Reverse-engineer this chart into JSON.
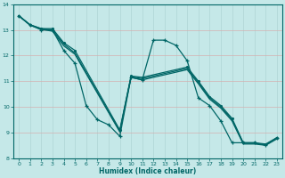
{
  "xlabel": "Humidex (Indice chaleur)",
  "background_color": "#c5e8e8",
  "grid_color": "#afd4d4",
  "line_color": "#006666",
  "xlim": [
    -0.5,
    23.5
  ],
  "ylim": [
    8,
    14
  ],
  "yticks": [
    8,
    9,
    10,
    11,
    12,
    13,
    14
  ],
  "xticks": [
    0,
    1,
    2,
    3,
    4,
    5,
    6,
    7,
    8,
    9,
    10,
    11,
    12,
    13,
    14,
    15,
    16,
    17,
    18,
    19,
    20,
    21,
    22,
    23
  ],
  "line_main_x": [
    0,
    1,
    2,
    3,
    4,
    5,
    6,
    7,
    8,
    9,
    10,
    11,
    12,
    13,
    14,
    15,
    16,
    17,
    18,
    19,
    20,
    21,
    22,
    23
  ],
  "line_main_y": [
    13.55,
    13.2,
    13.0,
    13.0,
    12.2,
    11.7,
    10.05,
    9.5,
    9.3,
    8.85,
    11.15,
    11.05,
    12.6,
    12.6,
    12.4,
    11.8,
    10.35,
    10.05,
    9.45,
    8.6,
    8.6,
    8.6,
    8.5,
    8.8
  ],
  "line2_x": [
    0,
    1,
    2,
    3,
    4,
    5,
    9,
    10,
    11,
    15,
    16,
    17,
    18,
    19,
    20,
    21,
    22,
    23
  ],
  "line2_y": [
    13.55,
    13.2,
    13.05,
    13.05,
    12.5,
    12.2,
    9.1,
    11.2,
    11.15,
    11.55,
    11.0,
    10.4,
    10.05,
    9.55,
    8.6,
    8.6,
    8.55,
    8.8
  ],
  "line3_x": [
    0,
    1,
    2,
    3,
    4,
    5,
    9,
    10,
    11,
    15,
    16,
    17,
    18,
    19,
    20,
    21,
    22,
    23
  ],
  "line3_y": [
    13.55,
    13.2,
    13.05,
    13.0,
    12.45,
    12.1,
    9.05,
    11.18,
    11.1,
    11.5,
    10.95,
    10.35,
    10.0,
    9.5,
    8.58,
    8.58,
    8.53,
    8.78
  ],
  "line4_x": [
    0,
    1,
    2,
    3,
    4,
    5,
    9,
    10,
    11,
    15,
    16,
    17,
    18,
    19,
    20,
    21,
    22,
    23
  ],
  "line4_y": [
    13.55,
    13.18,
    13.02,
    12.95,
    12.38,
    12.05,
    9.02,
    11.15,
    11.05,
    11.45,
    10.9,
    10.3,
    9.95,
    9.45,
    8.55,
    8.55,
    8.5,
    8.75
  ]
}
